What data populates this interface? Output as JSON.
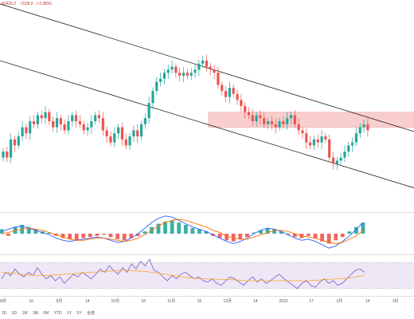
{
  "header": {
    "value_1": "43426.2",
    "value_2": "-1528.9",
    "value_3": "(-3.38%)"
  },
  "range_buttons": [
    "1D",
    "5D",
    "1M",
    "3M",
    "6M",
    "YTD",
    "1Y",
    "5Y",
    "全部"
  ],
  "chart_data": {
    "type": "candlestick",
    "x_ticks": [
      "8月",
      "16",
      "9月",
      "14",
      "10月",
      "18",
      "11月",
      "15",
      "12月",
      "14",
      "2022",
      "17",
      "2月",
      "14",
      "3月"
    ],
    "colors": {
      "up": "#26a69a",
      "down": "#ef5350",
      "zone_fill": "#f7c6c6",
      "zone_edge": "#ef9a9a",
      "channel": "#222222",
      "macd_line": "#2962ff",
      "signal_line": "#ff6d00",
      "rsi_line": "#7e57c2",
      "rsi_band": "#ede7f6",
      "rsi_ma": "#f9a825"
    },
    "price": {
      "closes": [
        40,
        38,
        44,
        42,
        45,
        48,
        46,
        50,
        49,
        52,
        51,
        53,
        50,
        48,
        51,
        49,
        47,
        50,
        52,
        50,
        49,
        47,
        48,
        50,
        52,
        51,
        47,
        45,
        43,
        46,
        48,
        44,
        42,
        45,
        47,
        45,
        49,
        51,
        56,
        60,
        63,
        64,
        66,
        67,
        68,
        66,
        65,
        66,
        65,
        66,
        67,
        69,
        70,
        68,
        67,
        66,
        62,
        60,
        58,
        61,
        59,
        57,
        55,
        53,
        52,
        50,
        52,
        51,
        49,
        50,
        49,
        48,
        50,
        49,
        51,
        52,
        49,
        47,
        46,
        43,
        42,
        44,
        43,
        45,
        44,
        38,
        36,
        37,
        38,
        40,
        42,
        43,
        46,
        48,
        49,
        47
      ],
      "resistance_zone": {
        "upper": 53,
        "lower": 48
      }
    },
    "macd": {
      "hist": [
        0.4,
        -0.2,
        0.6,
        0.8,
        0.6,
        0.4,
        0.2,
        0.1,
        -0.2,
        -0.4,
        -0.5,
        -0.6,
        -0.4,
        -0.3,
        -0.2,
        -0.1,
        -0.3,
        -0.5,
        -0.6,
        -0.4,
        -0.2,
        0.2,
        0.6,
        0.9,
        1.1,
        1.2,
        1.0,
        0.8,
        0.5,
        0.4,
        0.2,
        -0.2,
        -0.4,
        -0.6,
        -0.7,
        -0.5,
        -0.3,
        0.1,
        0.3,
        0.5,
        0.4,
        0.2,
        -0.1,
        -0.3,
        -0.4,
        -0.2,
        -0.4,
        -0.7,
        -0.9,
        -0.6,
        -0.3,
        0.2,
        0.6,
        1.0
      ],
      "macd_line": [
        0.2,
        0.4,
        0.6,
        0.7,
        0.5,
        0.3,
        0.1,
        -0.1,
        -0.4,
        -0.6,
        -0.7,
        -0.6,
        -0.5,
        -0.4,
        -0.3,
        -0.4,
        -0.6,
        -0.8,
        -0.7,
        -0.4,
        0.0,
        0.5,
        1.0,
        1.4,
        1.6,
        1.5,
        1.2,
        0.9,
        0.6,
        0.4,
        0.2,
        -0.1,
        -0.4,
        -0.7,
        -0.9,
        -0.7,
        -0.4,
        0.0,
        0.3,
        0.5,
        0.4,
        0.2,
        -0.1,
        -0.4,
        -0.6,
        -0.5,
        -0.7,
        -1.0,
        -1.3,
        -1.1,
        -0.7,
        -0.2,
        0.4,
        1.0
      ],
      "signal_line": [
        0.0,
        0.1,
        0.3,
        0.4,
        0.5,
        0.4,
        0.3,
        0.1,
        -0.1,
        -0.3,
        -0.5,
        -0.6,
        -0.6,
        -0.5,
        -0.4,
        -0.4,
        -0.5,
        -0.6,
        -0.7,
        -0.6,
        -0.4,
        -0.1,
        0.3,
        0.7,
        1.0,
        1.2,
        1.3,
        1.2,
        1.0,
        0.8,
        0.6,
        0.3,
        0.1,
        -0.2,
        -0.4,
        -0.5,
        -0.5,
        -0.3,
        -0.1,
        0.1,
        0.3,
        0.3,
        0.2,
        0.0,
        -0.2,
        -0.3,
        -0.4,
        -0.6,
        -0.8,
        -0.9,
        -0.8,
        -0.5,
        -0.2,
        0.3
      ]
    },
    "rsi": {
      "ylim": [
        20,
        80
      ],
      "band": [
        30,
        70
      ],
      "values": [
        45,
        55,
        50,
        60,
        52,
        48,
        55,
        50,
        62,
        52,
        45,
        50,
        42,
        48,
        38,
        45,
        52,
        48,
        55,
        50,
        45,
        52,
        60,
        55,
        65,
        58,
        52,
        62,
        55,
        68,
        60,
        72,
        65,
        75,
        58,
        55,
        48,
        42,
        50,
        45,
        52,
        55,
        50,
        45,
        48,
        42,
        40,
        45,
        38,
        35,
        42,
        48,
        45,
        40,
        35,
        42,
        48,
        40,
        45,
        38,
        42,
        48,
        52,
        45,
        40,
        35,
        30,
        38,
        42,
        35,
        32,
        40,
        45,
        38,
        42,
        35,
        38,
        45,
        52,
        58,
        60,
        55
      ],
      "ma": [
        55,
        54,
        52,
        51,
        50,
        50,
        51,
        52,
        53,
        54,
        55,
        56,
        57,
        58,
        58,
        57,
        56,
        54,
        52,
        50,
        48,
        46,
        45,
        45,
        44,
        44,
        43,
        42,
        42,
        42,
        42,
        42,
        42,
        42,
        42,
        43,
        44,
        45,
        46,
        48,
        50
      ]
    }
  }
}
